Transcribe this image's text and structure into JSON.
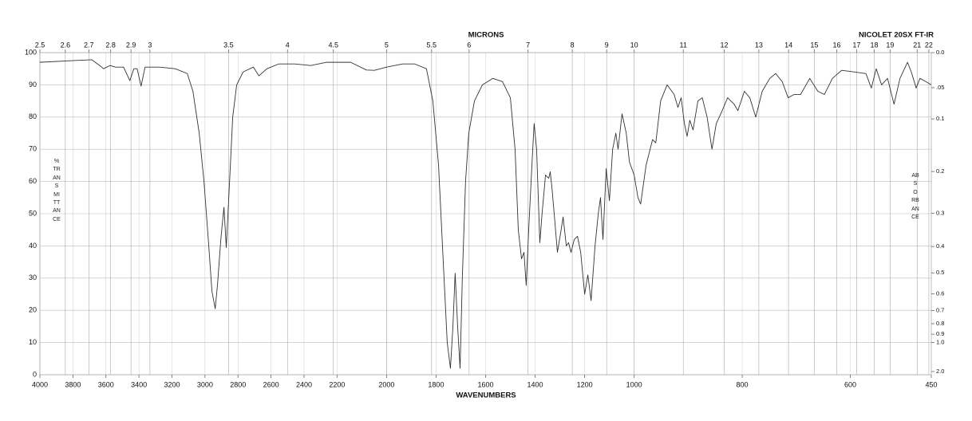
{
  "chart_data": {
    "type": "line",
    "title": "NICOLET 20SX FT-IR",
    "xlabel": "WAVENUMBERS",
    "ylabel": "%TRANSMITTANCE",
    "x2label": "MICRONS",
    "y2label": "ABSORBANCE",
    "color": "#333333",
    "grid": true,
    "xlim": [
      4000,
      450
    ],
    "xbreaks": [
      2200,
      1000
    ],
    "xticks": [
      4000,
      3800,
      3600,
      3400,
      3200,
      3000,
      2800,
      2600,
      2400,
      2200,
      2000,
      1800,
      1600,
      1400,
      1200,
      1000,
      800,
      600,
      450
    ],
    "x2scale": "reciprocal",
    "x2ticks": [
      2.5,
      2.6,
      2.7,
      2.8,
      2.9,
      3,
      3.5,
      4,
      4.5,
      5,
      5.5,
      6,
      7,
      8,
      9,
      10,
      11,
      12,
      13,
      14,
      15,
      16,
      17,
      18,
      19,
      21,
      22
    ],
    "ylim": [
      0,
      100
    ],
    "yticks": [
      0,
      10,
      20,
      30,
      40,
      50,
      60,
      70,
      80,
      90,
      100
    ],
    "y2scale": "absorbance",
    "y2ticks": [
      {
        "value": 0,
        "label": "0.0"
      },
      {
        "value": 0.05,
        "label": ".05"
      },
      0.1,
      0.2,
      0.3,
      0.4,
      0.5,
      0.6,
      0.7,
      0.8,
      0.9,
      {
        "value": 1,
        "label": "1.0"
      },
      {
        "value": 2,
        "label": "2.0"
      }
    ],
    "x": [
      4000,
      3807,
      3686,
      3638,
      3614,
      3575,
      3542,
      3493,
      3455,
      3431,
      3411,
      3387,
      3363,
      3276,
      3180,
      3107,
      3073,
      3035,
      3006,
      2977,
      2958,
      2938,
      2924,
      2904,
      2885,
      2871,
      2851,
      2832,
      2808,
      2769,
      2707,
      2673,
      2625,
      2552,
      2456,
      2359,
      2263,
      2200,
      2145,
      2081,
      2049,
      2000,
      1935,
      1887,
      1839,
      1813,
      1790,
      1771,
      1755,
      1742,
      1732,
      1723,
      1713,
      1703,
      1694,
      1681,
      1668,
      1645,
      1613,
      1571,
      1532,
      1500,
      1481,
      1468,
      1455,
      1445,
      1436,
      1426,
      1413,
      1404,
      1394,
      1381,
      1372,
      1358,
      1345,
      1339,
      1332,
      1323,
      1310,
      1297,
      1287,
      1274,
      1265,
      1255,
      1242,
      1229,
      1216,
      1200,
      1187,
      1174,
      1158,
      1145,
      1136,
      1126,
      1113,
      1100,
      1087,
      1074,
      1065,
      1049,
      1032,
      1019,
      1000,
      993,
      988,
      978,
      966,
      960,
      951,
      939,
      926,
      919,
      913,
      907,
      902,
      897,
      891,
      882,
      874,
      865,
      856,
      848,
      837,
      827,
      815,
      808,
      796,
      786,
      775,
      763,
      749,
      738,
      726,
      715,
      704,
      692,
      675,
      660,
      648,
      633,
      616,
      593,
      571,
      561,
      552,
      542,
      531,
      519,
      508,
      494,
      487,
      478,
      471,
      460,
      450
    ],
    "values": [
      97,
      97.5,
      97.8,
      96,
      95,
      96,
      95.5,
      95.5,
      91.3,
      95,
      95,
      89.6,
      95.5,
      95.5,
      95,
      93.5,
      88,
      75,
      60,
      40,
      26,
      20.5,
      28,
      42,
      52,
      39.5,
      60,
      80,
      90,
      94,
      95.5,
      92.8,
      95,
      96.5,
      96.5,
      96,
      97,
      97,
      97,
      94.6,
      94.5,
      95.5,
      96.5,
      96.5,
      95,
      85,
      65,
      35,
      10,
      2,
      15,
      31.5,
      15,
      2,
      30,
      60,
      75,
      85,
      90,
      92,
      91,
      86,
      70,
      45,
      36,
      38,
      27.7,
      45,
      65,
      78,
      70,
      41,
      50,
      62,
      61,
      63,
      58,
      50,
      38,
      44,
      49,
      40,
      41,
      38,
      42,
      43,
      38,
      25,
      31,
      23,
      40,
      50,
      55,
      42,
      64,
      54,
      70,
      75,
      70,
      81,
      75,
      66,
      62,
      55,
      53,
      65,
      73,
      72,
      85,
      90,
      87,
      83,
      86,
      78,
      74,
      79,
      76,
      85,
      86,
      80,
      70,
      78,
      82,
      86,
      84,
      82,
      88,
      86,
      80,
      88,
      92,
      93.5,
      91,
      86,
      87,
      87,
      92,
      88,
      87,
      92,
      94.5,
      94,
      93.5,
      89,
      95,
      90,
      92,
      84,
      92,
      97,
      94,
      89,
      92,
      91,
      90
    ]
  }
}
